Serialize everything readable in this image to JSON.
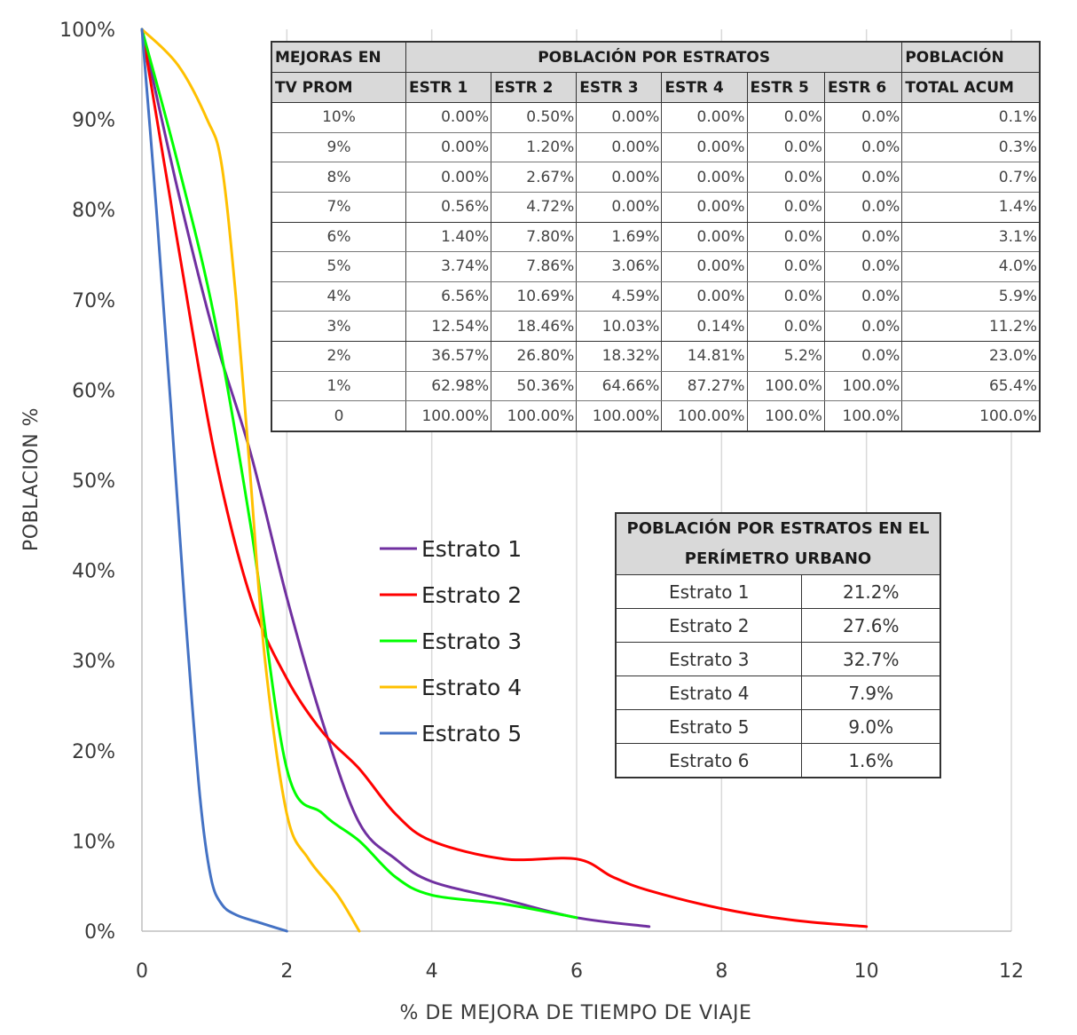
{
  "chart_data": {
    "type": "line",
    "xlabel": "% DE MEJORA DE TIEMPO DE VIAJE",
    "ylabel": "POBLACION %",
    "xlim": [
      0,
      12
    ],
    "ylim": [
      0,
      100
    ],
    "x_ticks": [
      "0",
      "2",
      "4",
      "6",
      "8",
      "10",
      "12"
    ],
    "y_ticks": [
      "0%",
      "10%",
      "20%",
      "30%",
      "40%",
      "50%",
      "60%",
      "70%",
      "80%",
      "90%",
      "100%"
    ],
    "grid": "vertical",
    "legend_position": "center",
    "series": [
      {
        "name": "Estrato 1",
        "color": "#7030a0",
        "points": [
          [
            0,
            100
          ],
          [
            0.5,
            82
          ],
          [
            1,
            66
          ],
          [
            1.5,
            53
          ],
          [
            2,
            37
          ],
          [
            2.5,
            23
          ],
          [
            3,
            12
          ],
          [
            3.5,
            8
          ],
          [
            4,
            5.5
          ],
          [
            5,
            3.5
          ],
          [
            6,
            1.5
          ],
          [
            7,
            0.5
          ]
        ]
      },
      {
        "name": "Estrato 2",
        "color": "#ff0000",
        "points": [
          [
            0,
            100
          ],
          [
            0.5,
            76
          ],
          [
            1,
            53
          ],
          [
            1.5,
            37
          ],
          [
            2,
            28
          ],
          [
            2.5,
            22
          ],
          [
            3,
            18
          ],
          [
            3.5,
            13
          ],
          [
            4,
            10
          ],
          [
            5,
            8
          ],
          [
            6,
            8
          ],
          [
            6.5,
            6
          ],
          [
            7,
            4.5
          ],
          [
            8,
            2.5
          ],
          [
            9,
            1.2
          ],
          [
            10,
            0.5
          ]
        ]
      },
      {
        "name": "Estrato 3",
        "color": "#00ff00",
        "points": [
          [
            0,
            100
          ],
          [
            0.5,
            85
          ],
          [
            1,
            68
          ],
          [
            1.5,
            45
          ],
          [
            2,
            18
          ],
          [
            2.5,
            13
          ],
          [
            3,
            10
          ],
          [
            3.5,
            6
          ],
          [
            4,
            4
          ],
          [
            5,
            3
          ],
          [
            6,
            1.5
          ]
        ]
      },
      {
        "name": "Estrato 4",
        "color": "#ffc000",
        "points": [
          [
            0,
            100
          ],
          [
            0.5,
            96
          ],
          [
            0.9,
            90
          ],
          [
            1.1,
            85
          ],
          [
            1.3,
            70
          ],
          [
            1.5,
            50
          ],
          [
            1.7,
            30
          ],
          [
            2,
            13
          ],
          [
            2.3,
            8
          ],
          [
            2.7,
            4
          ],
          [
            3,
            0
          ]
        ]
      },
      {
        "name": "Estrato 5",
        "color": "#4472c4",
        "points": [
          [
            0,
            100
          ],
          [
            0.2,
            80
          ],
          [
            0.4,
            58
          ],
          [
            0.6,
            35
          ],
          [
            0.8,
            15
          ],
          [
            0.95,
            6
          ],
          [
            1.1,
            3
          ],
          [
            1.3,
            1.8
          ],
          [
            1.6,
            1
          ],
          [
            2,
            0
          ]
        ]
      }
    ]
  },
  "stratum_table": {
    "header_top": {
      "col1": "MEJORAS EN",
      "group": "POBLACIÓN POR ESTRATOS",
      "total": "POBLACIÓN"
    },
    "header_sub": [
      "TV PROM",
      "ESTR 1",
      "ESTR 2",
      "ESTR 3",
      "ESTR 4",
      "ESTR 5",
      "ESTR 6",
      "TOTAL ACUM"
    ],
    "rows": [
      [
        "10%",
        "0.00%",
        "0.50%",
        "0.00%",
        "0.00%",
        "0.0%",
        "0.0%",
        "0.1%"
      ],
      [
        "9%",
        "0.00%",
        "1.20%",
        "0.00%",
        "0.00%",
        "0.0%",
        "0.0%",
        "0.3%"
      ],
      [
        "8%",
        "0.00%",
        "2.67%",
        "0.00%",
        "0.00%",
        "0.0%",
        "0.0%",
        "0.7%"
      ],
      [
        "7%",
        "0.56%",
        "4.72%",
        "0.00%",
        "0.00%",
        "0.0%",
        "0.0%",
        "1.4%"
      ],
      [
        "6%",
        "1.40%",
        "7.80%",
        "1.69%",
        "0.00%",
        "0.0%",
        "0.0%",
        "3.1%"
      ],
      [
        "5%",
        "3.74%",
        "7.86%",
        "3.06%",
        "0.00%",
        "0.0%",
        "0.0%",
        "4.0%"
      ],
      [
        "4%",
        "6.56%",
        "10.69%",
        "4.59%",
        "0.00%",
        "0.0%",
        "0.0%",
        "5.9%"
      ],
      [
        "3%",
        "12.54%",
        "18.46%",
        "10.03%",
        "0.14%",
        "0.0%",
        "0.0%",
        "11.2%"
      ],
      [
        "2%",
        "36.57%",
        "26.80%",
        "18.32%",
        "14.81%",
        "5.2%",
        "0.0%",
        "23.0%"
      ],
      [
        "1%",
        "62.98%",
        "50.36%",
        "64.66%",
        "87.27%",
        "100.0%",
        "100.0%",
        "65.4%"
      ],
      [
        "0",
        "100.00%",
        "100.00%",
        "100.00%",
        "100.00%",
        "100.0%",
        "100.0%",
        "100.0%"
      ]
    ]
  },
  "urban_table": {
    "title": "POBLACIÓN POR ESTRATOS EN EL PERÍMETRO URBANO",
    "rows": [
      [
        "Estrato 1",
        "21.2%"
      ],
      [
        "Estrato 2",
        "27.6%"
      ],
      [
        "Estrato 3",
        "32.7%"
      ],
      [
        "Estrato 4",
        "7.9%"
      ],
      [
        "Estrato 5",
        "9.0%"
      ],
      [
        "Estrato 6",
        "1.6%"
      ]
    ]
  }
}
